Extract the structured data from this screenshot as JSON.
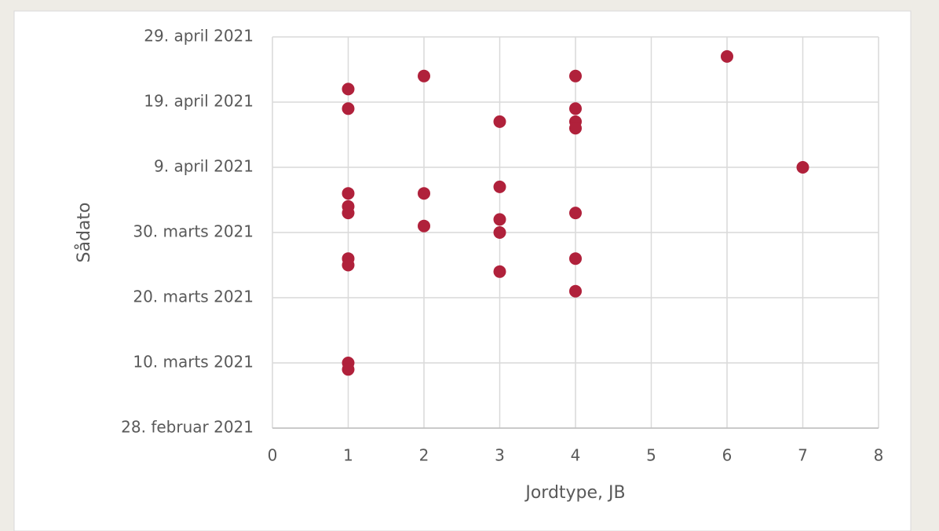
{
  "chart_data": {
    "type": "scatter",
    "x_label": "Jordtype, JB",
    "y_label": "Sådato",
    "color": "#b0213b",
    "grid": true,
    "x": [
      1,
      1,
      1,
      1,
      1,
      1,
      1,
      1,
      1,
      2,
      2,
      2,
      3,
      3,
      3,
      3,
      3,
      4,
      4,
      4,
      4,
      4,
      4,
      4,
      6,
      7
    ],
    "values": [
      111,
      108,
      95,
      93,
      92,
      85,
      84,
      69,
      68,
      113,
      95,
      90,
      106,
      96,
      91,
      89,
      83,
      113,
      108,
      106,
      105,
      92,
      85,
      80,
      116,
      99
    ],
    "xlim": [
      0,
      8
    ],
    "xticks": [
      0,
      1,
      2,
      3,
      4,
      5,
      6,
      7,
      8
    ],
    "ylim": [
      59,
      119
    ],
    "yticks": [
      {
        "value": 59,
        "label": "28. februar 2021"
      },
      {
        "value": 69,
        "label": "10. marts 2021"
      },
      {
        "value": 79,
        "label": "20. marts 2021"
      },
      {
        "value": 89,
        "label": "30. marts 2021"
      },
      {
        "value": 99,
        "label": "9. april 2021"
      },
      {
        "value": 109,
        "label": "19. april 2021"
      },
      {
        "value": 119,
        "label": "29. april 2021"
      }
    ]
  }
}
